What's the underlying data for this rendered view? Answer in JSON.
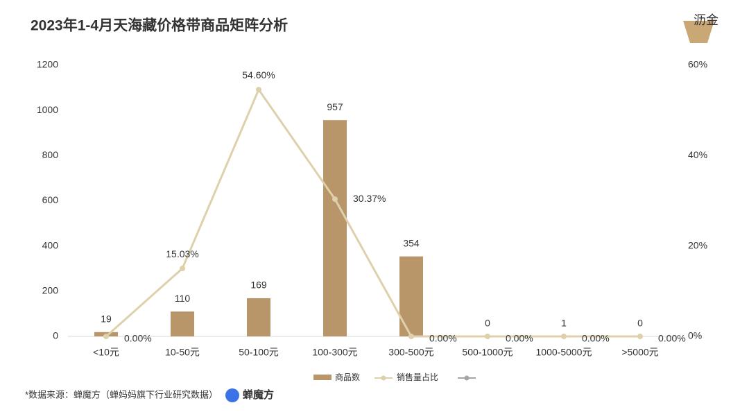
{
  "logo": "沥金",
  "chart_data": {
    "type": "bar",
    "title": "2023年1-4月天海藏价格带商品矩阵分析",
    "categories": [
      "<10元",
      "10-50元",
      "50-100元",
      "100-300元",
      "300-500元",
      "500-1000元",
      "1000-5000元",
      ">5000元"
    ],
    "series": [
      {
        "name": "商品数",
        "type": "bar",
        "color": "#b8966a",
        "values": [
          19,
          110,
          169,
          957,
          354,
          0,
          1,
          0
        ]
      },
      {
        "name": "销售量占比",
        "type": "line",
        "axis": "y2",
        "color": "#ddd0ab",
        "values": [
          0,
          15.03,
          54.6,
          30.37,
          0,
          0,
          0,
          0
        ],
        "value_labels": [
          "0.00%",
          "15.03%",
          "54.60%",
          "30.37%",
          "0.00%",
          "0.00%",
          "0.00%",
          "0.00%"
        ]
      }
    ],
    "ylim": [
      0,
      1200
    ],
    "yticks": [
      0,
      200,
      400,
      600,
      800,
      1000,
      1200
    ],
    "y2lim": [
      0,
      60
    ],
    "y2ticks": [
      {
        "value": 0,
        "label": "0%"
      },
      {
        "value": 20,
        "label": "20%"
      },
      {
        "value": 40,
        "label": "40%"
      },
      {
        "value": 60,
        "label": "60%"
      }
    ],
    "grid": false
  },
  "footer": {
    "source": "*数据来源：蝉魔方（蝉妈妈旗下行业研究数据）",
    "brand": "蝉魔方"
  }
}
